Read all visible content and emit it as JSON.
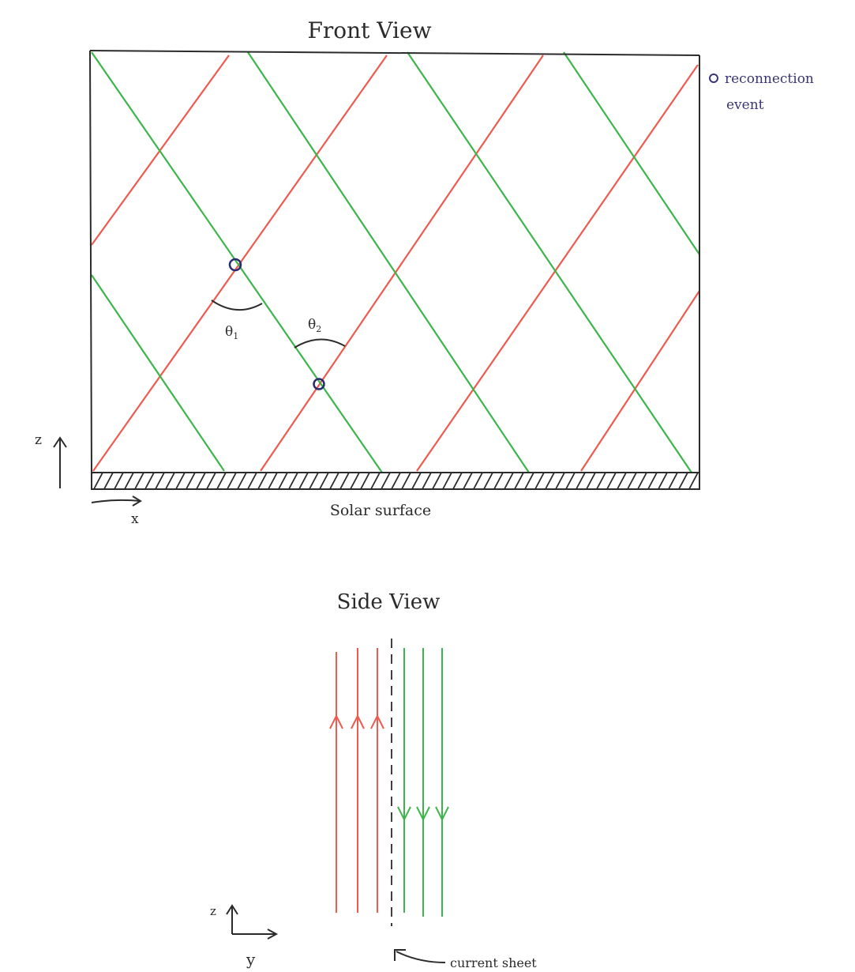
{
  "front_view": {
    "title": "Front View",
    "legend_symbol": "o",
    "legend_text_line1": "reconnection",
    "legend_text_line2": "event",
    "theta1_label": "θ",
    "theta1_sub": "1",
    "theta2_label": "θ",
    "theta2_sub": "2",
    "z_axis_label": "z",
    "x_axis_label": "x",
    "surface_label": "Solar surface"
  },
  "side_view": {
    "title": "Side View",
    "z_axis_label": "z",
    "y_axis_label": "y",
    "current_sheet_label": "current sheet"
  },
  "colors": {
    "red_field": "#ef5a4f",
    "green_field": "#3cb54a",
    "ink": "#2b2b2b",
    "marker": "#2a2a6e",
    "legend_ink": "#3a3575"
  }
}
